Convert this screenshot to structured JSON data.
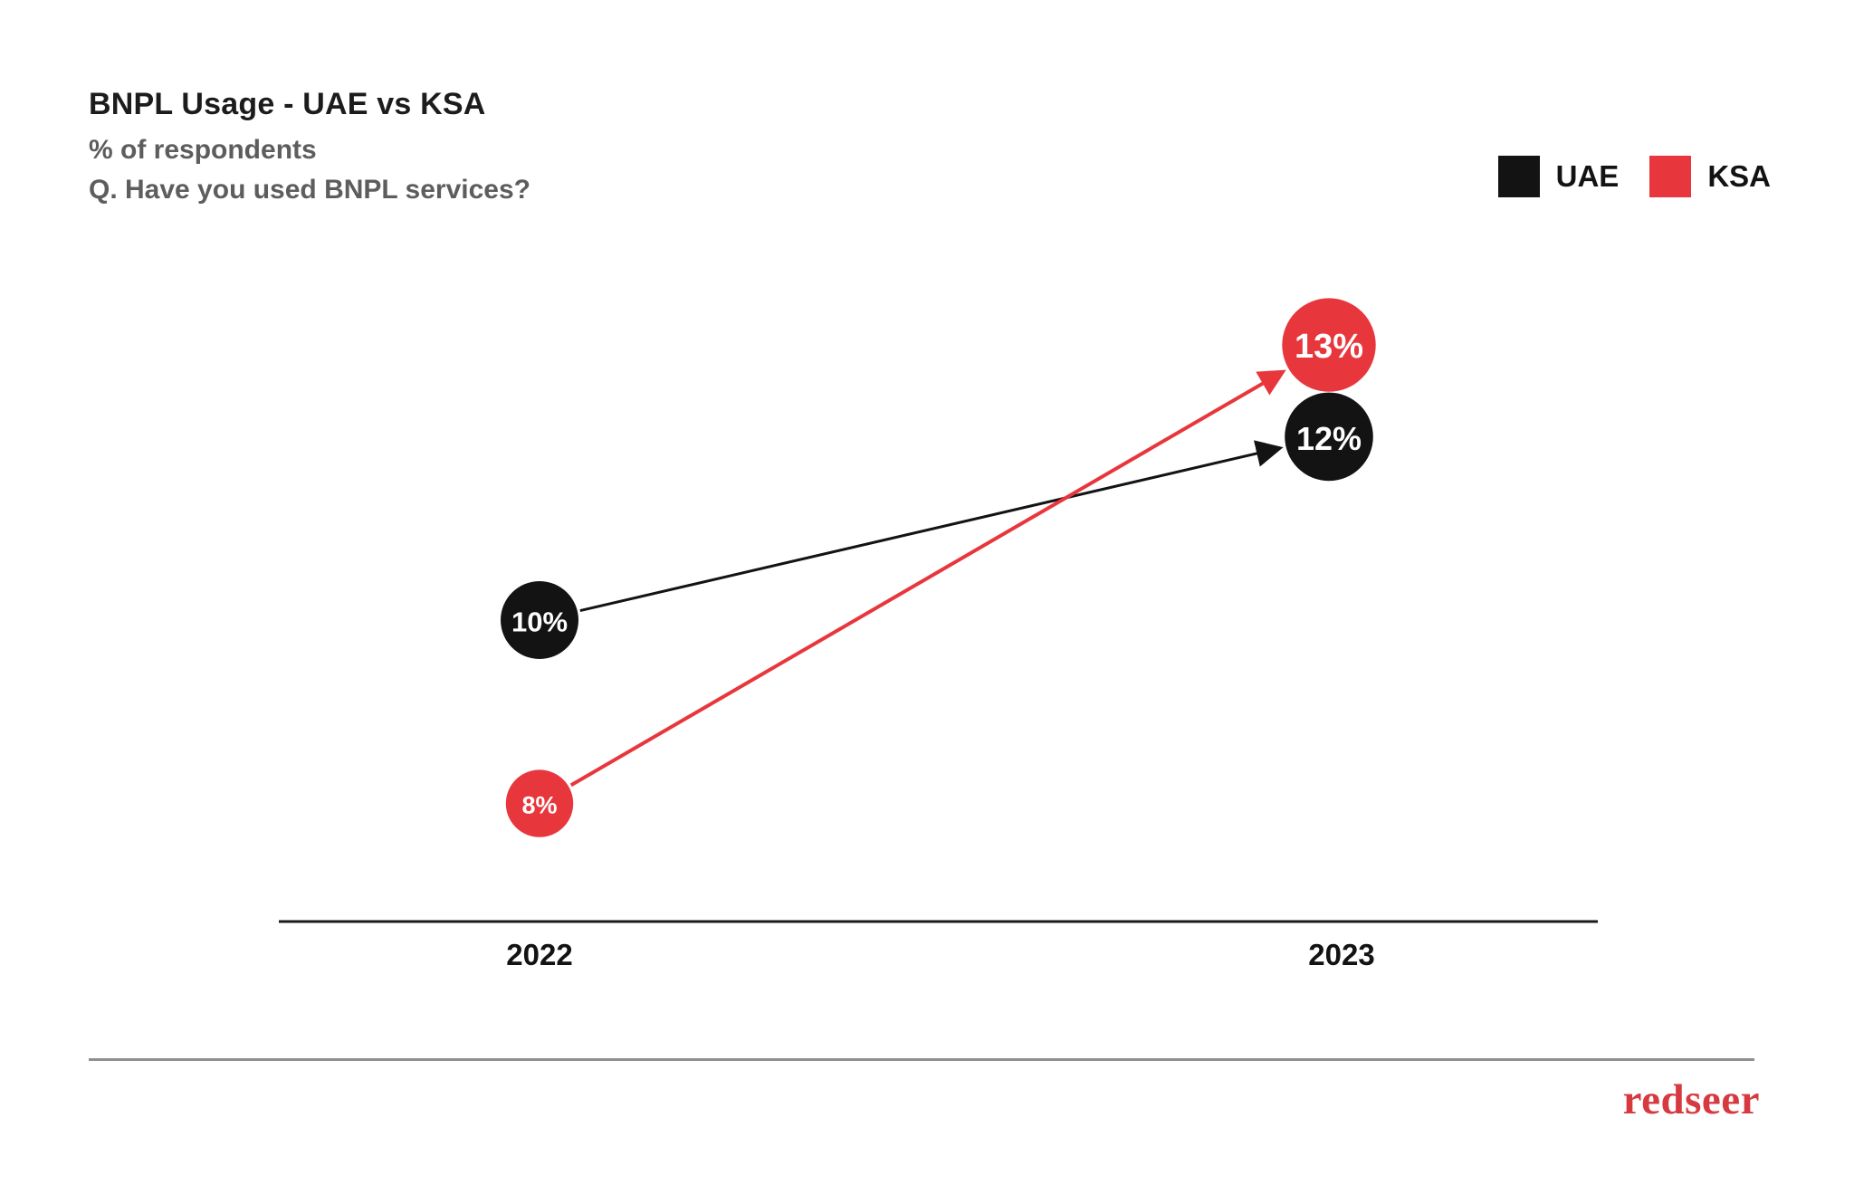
{
  "header": {
    "title": "BNPL Usage - UAE vs KSA",
    "subtitle": "% of respondents",
    "question": "Q. Have you used BNPL services?"
  },
  "legend": [
    {
      "label": "UAE",
      "color": "#131313"
    },
    {
      "label": "KSA",
      "color": "#E8363D"
    }
  ],
  "chart_data": {
    "type": "line",
    "variant": "slope-chart-with-arrow-markers",
    "title": "BNPL Usage - UAE vs KSA",
    "ylabel": "% of respondents",
    "categories": [
      "2022",
      "2023"
    ],
    "series": [
      {
        "name": "UAE",
        "color": "#131313",
        "values": [
          10,
          12
        ],
        "labels": [
          "10%",
          "12%"
        ]
      },
      {
        "name": "KSA",
        "color": "#E8363D",
        "values": [
          8,
          13
        ],
        "labels": [
          "8%",
          "13%"
        ]
      }
    ],
    "unit": "%",
    "ylim": [
      6,
      15
    ],
    "grid": false,
    "legend_position": "top-right"
  },
  "footer": {
    "brand": "redseer",
    "brand_color": "#D63A40"
  }
}
